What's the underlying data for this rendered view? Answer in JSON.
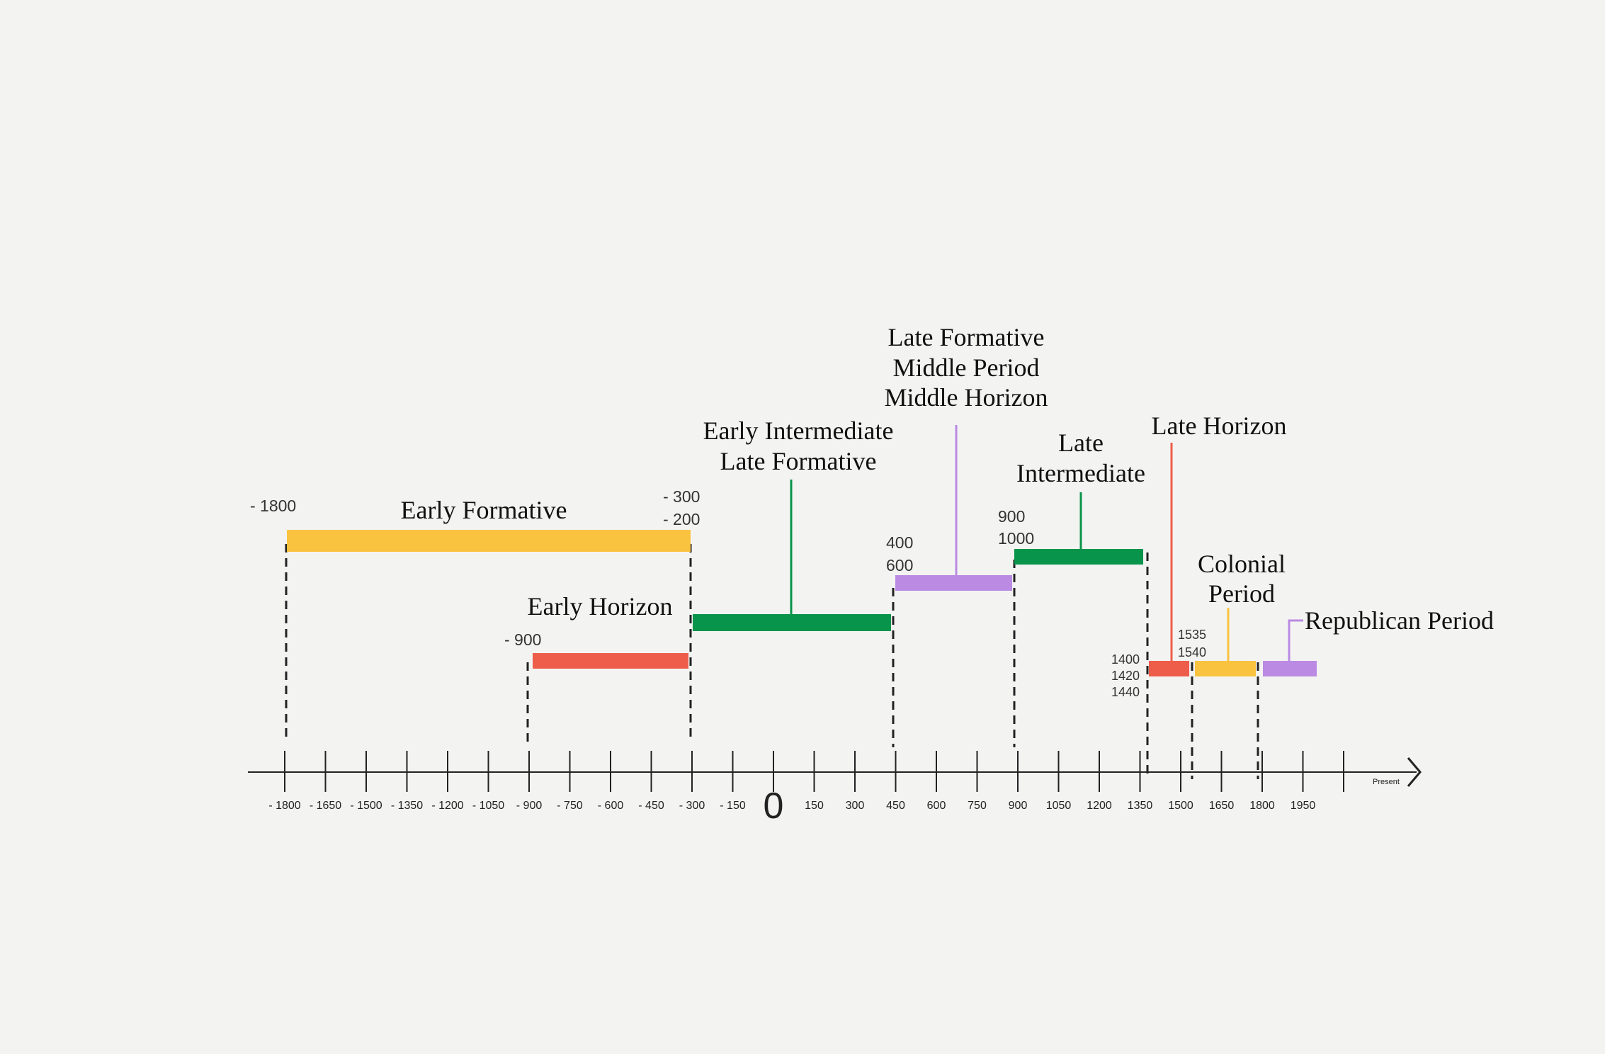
{
  "colors": {
    "yellow": "#f9c33f",
    "red": "#ee5d4a",
    "green": "#08944a",
    "purple": "#bb8ae3",
    "axis": "#222222",
    "background": "#f3f3f2"
  },
  "axis": {
    "tick_labels": [
      "- 1800",
      "- 1650",
      "- 1500",
      "- 1350",
      "- 1200",
      "- 1050",
      "- 900",
      "- 750",
      "- 600",
      "- 450",
      "- 300",
      "- 150",
      "0",
      "150",
      "300",
      "450",
      "600",
      "750",
      "900",
      "1050",
      "1200",
      "1350",
      "1500",
      "1650",
      "1800",
      "1950"
    ],
    "present_label": "Present"
  },
  "periods": [
    {
      "name": "Early Formative",
      "label_lines": [
        "Early Formative"
      ],
      "color": "yellow",
      "start_label": "- 1800",
      "end_labels": [
        "- 300",
        "- 200"
      ]
    },
    {
      "name": "Early Horizon",
      "label_lines": [
        "Early Horizon"
      ],
      "color": "red",
      "start_label": "- 900"
    },
    {
      "name": "Early Intermediate / Late Formative",
      "label_lines": [
        "Early Intermediate",
        "Late Formative"
      ],
      "color": "green"
    },
    {
      "name": "Late Formative / Middle Period / Middle Horizon",
      "label_lines": [
        "Late Formative",
        "Middle Period",
        "Middle Horizon"
      ],
      "color": "purple",
      "start_labels": [
        "400",
        "600"
      ]
    },
    {
      "name": "Late Intermediate",
      "label_lines": [
        "Late",
        "Intermediate"
      ],
      "color": "green",
      "start_labels": [
        "900",
        "1000"
      ]
    },
    {
      "name": "Late Horizon",
      "label_lines": [
        "Late Horizon"
      ],
      "color": "red",
      "start_labels": [
        "1400",
        "1420",
        "1440"
      ]
    },
    {
      "name": "Colonial Period",
      "label_lines": [
        "Colonial",
        "Period"
      ],
      "color": "yellow",
      "start_labels": [
        "1535",
        "1540"
      ]
    },
    {
      "name": "Republican Period",
      "label_lines": [
        "Republican Period"
      ],
      "color": "purple"
    }
  ]
}
